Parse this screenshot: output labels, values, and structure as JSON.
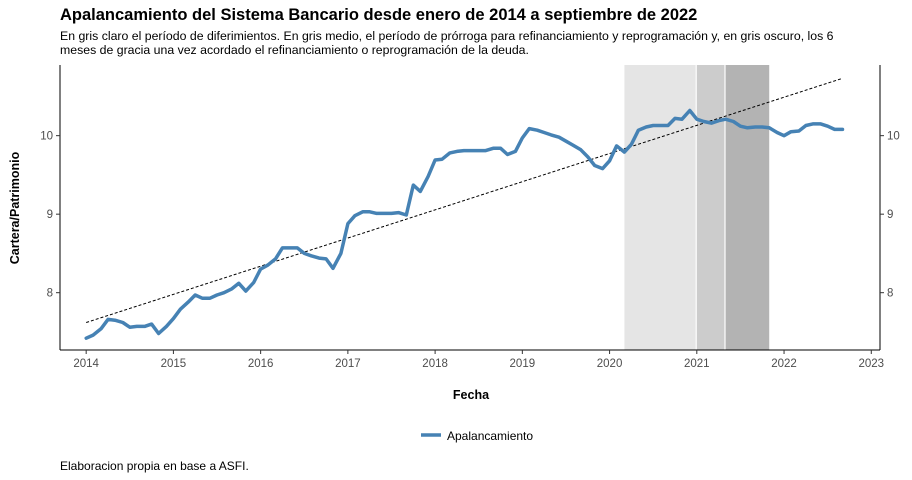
{
  "chart_data": {
    "type": "line",
    "title": "Apalancamiento del Sistema Bancario desde enero de 2014 a septiembre de 2022",
    "subtitle": "En gris claro el período de diferimientos. En gris medio, el período de prórroga para refinanciamiento y reprogramación y, en gris oscuro, los 6 meses de gracia una vez acordado el refinanciamiento o reprogramación de la deuda.",
    "xlabel": "Fecha",
    "ylabel": "Cartera/Patrimonio",
    "caption": "Elaboracion propia en base a ASFI.",
    "x_ticks": [
      "2014",
      "2015",
      "2016",
      "2017",
      "2018",
      "2019",
      "2020",
      "2021",
      "2022",
      "2023"
    ],
    "y_ticks": [
      "8",
      "9",
      "10"
    ],
    "xlim": [
      2013.7,
      2023.1
    ],
    "ylim": [
      7.27,
      10.9
    ],
    "grid": false,
    "legend_position": "bottom",
    "series": [
      {
        "name": "Apalancamiento",
        "color": "#4682B4",
        "x": [
          2014.0,
          2014.08,
          2014.17,
          2014.25,
          2014.33,
          2014.42,
          2014.5,
          2014.58,
          2014.67,
          2014.75,
          2014.83,
          2014.92,
          2015.0,
          2015.08,
          2015.17,
          2015.25,
          2015.33,
          2015.42,
          2015.5,
          2015.58,
          2015.67,
          2015.75,
          2015.83,
          2015.92,
          2016.0,
          2016.08,
          2016.17,
          2016.25,
          2016.33,
          2016.42,
          2016.5,
          2016.58,
          2016.67,
          2016.75,
          2016.83,
          2016.92,
          2017.0,
          2017.08,
          2017.17,
          2017.25,
          2017.33,
          2017.42,
          2017.5,
          2017.58,
          2017.67,
          2017.75,
          2017.83,
          2017.92,
          2018.0,
          2018.08,
          2018.17,
          2018.25,
          2018.33,
          2018.42,
          2018.5,
          2018.58,
          2018.67,
          2018.75,
          2018.83,
          2018.92,
          2019.0,
          2019.08,
          2019.17,
          2019.25,
          2019.33,
          2019.42,
          2019.5,
          2019.58,
          2019.67,
          2019.75,
          2019.83,
          2019.92,
          2020.0,
          2020.08,
          2020.17,
          2020.25,
          2020.33,
          2020.42,
          2020.5,
          2020.58,
          2020.67,
          2020.75,
          2020.83,
          2020.92,
          2021.0,
          2021.08,
          2021.17,
          2021.25,
          2021.33,
          2021.42,
          2021.5,
          2021.58,
          2021.67,
          2021.75,
          2021.83,
          2021.92,
          2022.0,
          2022.08,
          2022.17,
          2022.25,
          2022.33,
          2022.42,
          2022.5,
          2022.58,
          2022.67
        ],
        "y": [
          7.42,
          7.46,
          7.54,
          7.66,
          7.65,
          7.62,
          7.56,
          7.57,
          7.57,
          7.6,
          7.48,
          7.57,
          7.67,
          7.79,
          7.88,
          7.97,
          7.93,
          7.93,
          7.97,
          8.0,
          8.05,
          8.12,
          8.02,
          8.13,
          8.3,
          8.35,
          8.43,
          8.57,
          8.57,
          8.57,
          8.5,
          8.47,
          8.44,
          8.43,
          8.31,
          8.5,
          8.88,
          8.98,
          9.03,
          9.03,
          9.01,
          9.01,
          9.01,
          9.02,
          8.99,
          9.37,
          9.29,
          9.48,
          9.69,
          9.7,
          9.78,
          9.8,
          9.81,
          9.81,
          9.81,
          9.81,
          9.84,
          9.84,
          9.76,
          9.8,
          9.97,
          10.09,
          10.07,
          10.04,
          10.01,
          9.98,
          9.93,
          9.88,
          9.82,
          9.73,
          9.62,
          9.58,
          9.68,
          9.87,
          9.79,
          9.89,
          10.07,
          10.11,
          10.13,
          10.13,
          10.13,
          10.22,
          10.21,
          10.32,
          10.21,
          10.18,
          10.16,
          10.19,
          10.21,
          10.18,
          10.12,
          10.1,
          10.11,
          10.11,
          10.1,
          10.04,
          10.0,
          10.05,
          10.06,
          10.13,
          10.15,
          10.15,
          10.12,
          10.08,
          10.08
        ]
      }
    ],
    "trend_line": {
      "style": "dashed",
      "color": "#000000",
      "x": [
        2014.0,
        2022.67
      ],
      "y": [
        7.62,
        10.73
      ]
    },
    "shaded_periods": [
      {
        "label": "período de diferimientos",
        "shade": "gris claro",
        "color": "#E5E5E5",
        "x_start": 2020.17,
        "x_end": 2021.0
      },
      {
        "label": "período de prórroga para refinanciamiento y reprogramación",
        "shade": "gris medio",
        "color": "#CCCCCC",
        "x_start": 2021.0,
        "x_end": 2021.33
      },
      {
        "label": "6 meses de gracia",
        "shade": "gris oscuro",
        "color": "#B3B3B3",
        "x_start": 2021.33,
        "x_end": 2021.83
      }
    ]
  }
}
